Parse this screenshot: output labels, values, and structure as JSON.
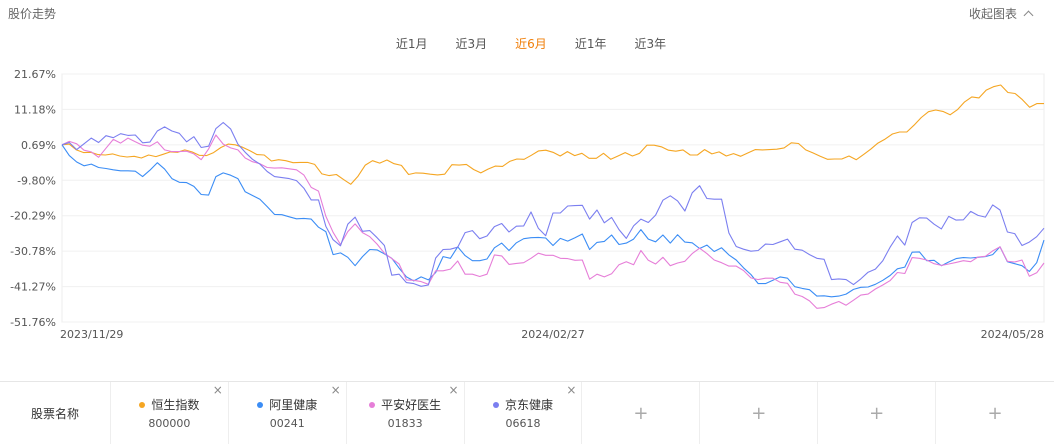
{
  "header": {
    "title": "股价走势",
    "collapse_label": "收起图表"
  },
  "tabs": [
    {
      "label": "近1月",
      "active": false
    },
    {
      "label": "近3月",
      "active": false
    },
    {
      "label": "近6月",
      "active": true
    },
    {
      "label": "近1年",
      "active": false
    },
    {
      "label": "近3年",
      "active": false
    }
  ],
  "footer": {
    "label": "股票名称",
    "stocks": [
      {
        "name": "恒生指数",
        "code": "800000",
        "color": "#f5a623",
        "close": "×"
      },
      {
        "name": "阿里健康",
        "code": "00241",
        "color": "#3b8df5",
        "close": "×"
      },
      {
        "name": "平安好医生",
        "code": "01833",
        "color": "#e67ed8",
        "close": "×"
      },
      {
        "name": "京东健康",
        "code": "06618",
        "color": "#7b7ff0",
        "close": "×"
      }
    ],
    "add_slots": [
      "+",
      "+",
      "+",
      "+"
    ]
  },
  "chart_data": {
    "type": "line",
    "x_start": "2023-11-29",
    "x_end": "2024-05-28",
    "x_ticks": [
      "2023/11/29",
      "2024/02/27",
      "2024/05/28"
    ],
    "y_ticks": [
      "21.67%",
      "11.18%",
      "0.69%",
      "-9.80%",
      "-20.29%",
      "-30.78%",
      "-41.27%",
      "-51.76%"
    ],
    "ylim": [
      -51.76,
      21.67
    ],
    "grid": true,
    "series": [
      {
        "name": "恒生指数",
        "color": "#f5a623",
        "values": [
          0.7,
          0.9,
          -0.8,
          -1.6,
          -1.5,
          -2.2,
          -2.3,
          -2.0,
          -2.6,
          -2.9,
          -2.7,
          -3.2,
          -2.3,
          -2.8,
          -2.1,
          -1.4,
          -1.5,
          -0.8,
          -1.4,
          -2.4,
          -2.5,
          -1.6,
          -0.1,
          0.9,
          0.7,
          0.0,
          -1.0,
          -2.2,
          -2.3,
          -4.1,
          -3.7,
          -4.0,
          -4.6,
          -4.5,
          -4.5,
          -5.1,
          -7.9,
          -8.4,
          -8.1,
          -9.6,
          -11.0,
          -8.6,
          -5.3,
          -4.0,
          -4.7,
          -3.8,
          -4.9,
          -5.4,
          -8.1,
          -7.6,
          -7.7,
          -8.0,
          -8.2,
          -8.0,
          -5.2,
          -5.3,
          -5.1,
          -6.6,
          -7.6,
          -6.5,
          -5.6,
          -5.7,
          -4.2,
          -3.5,
          -3.6,
          -2.4,
          -1.1,
          -0.9,
          -1.5,
          -2.6,
          -1.3,
          -2.5,
          -1.8,
          -3.3,
          -3.3,
          -1.8,
          -3.6,
          -2.6,
          -1.6,
          -2.6,
          -1.8,
          0.6,
          0.6,
          0.1,
          -0.9,
          -1.2,
          -0.8,
          -2.3,
          -2.3,
          -0.7,
          -2.0,
          -1.4,
          -2.6,
          -1.9,
          -2.7,
          -1.7,
          -0.7,
          -0.8,
          -0.7,
          -0.6,
          -0.2,
          1.3,
          1.1,
          -0.8,
          -1.7,
          -2.7,
          -3.6,
          -3.5,
          -3.5,
          -2.6,
          -3.7,
          -2.2,
          -0.6,
          1.2,
          2.4,
          3.9,
          4.5,
          4.5,
          6.5,
          8.8,
          10.5,
          11.0,
          10.6,
          9.6,
          11.1,
          13.4,
          14.9,
          14.6,
          16.9,
          17.9,
          18.4,
          16.2,
          15.9,
          14.1,
          11.8,
          12.9,
          12.9
        ]
      },
      {
        "name": "阿里健康",
        "color": "#3b8df5",
        "values": [
          0.7,
          -2.5,
          -4.4,
          -5.5,
          -5.0,
          -6.0,
          -6.3,
          -6.7,
          -7.0,
          -7.0,
          -7.1,
          -8.7,
          -6.8,
          -4.6,
          -6.5,
          -9.3,
          -10.4,
          -10.5,
          -11.6,
          -14.0,
          -14.2,
          -8.7,
          -7.6,
          -8.3,
          -9.3,
          -13.2,
          -14.3,
          -15.4,
          -17.6,
          -19.9,
          -20.0,
          -20.6,
          -21.2,
          -21.1,
          -21.3,
          -23.7,
          -25.0,
          -31.8,
          -31.3,
          -32.6,
          -35.1,
          -32.4,
          -30.3,
          -30.4,
          -31.6,
          -32.9,
          -35.8,
          -38.4,
          -39.6,
          -38.4,
          -39.3,
          -37.1,
          -32.4,
          -32.9,
          -29.5,
          -32.1,
          -33.6,
          -33.6,
          -33.1,
          -29.8,
          -28.4,
          -30.6,
          -28.3,
          -27.1,
          -26.8,
          -26.7,
          -26.9,
          -29.1,
          -27.0,
          -27.8,
          -26.8,
          -25.7,
          -30.3,
          -28.2,
          -27.9,
          -26.0,
          -28.8,
          -28.4,
          -27.2,
          -24.4,
          -27.2,
          -28.0,
          -26.0,
          -28.4,
          -25.9,
          -28.1,
          -28.3,
          -30.0,
          -29.0,
          -30.9,
          -29.8,
          -31.9,
          -33.4,
          -35.7,
          -37.7,
          -40.4,
          -40.4,
          -39.4,
          -38.4,
          -38.8,
          -41.3,
          -41.8,
          -42.2,
          -44.1,
          -44.0,
          -44.3,
          -44.1,
          -43.5,
          -42.1,
          -41.5,
          -41.4,
          -40.6,
          -39.4,
          -38.0,
          -36.0,
          -35.5,
          -31.1,
          -31.0,
          -33.6,
          -33.5,
          -35.1,
          -34.0,
          -33.0,
          -32.7,
          -32.8,
          -32.6,
          -32.4,
          -31.8,
          -29.5,
          -33.9,
          -34.5,
          -35.1,
          -36.8,
          -34.2,
          -27.5
        ]
      },
      {
        "name": "平安好医生",
        "color": "#e67ed8",
        "values": [
          0.7,
          1.7,
          1.0,
          -0.9,
          -1.4,
          -3.0,
          -0.3,
          2.3,
          1.2,
          2.7,
          1.6,
          0.6,
          0.3,
          1.6,
          -0.8,
          -1.3,
          -1.3,
          -1.2,
          -2.0,
          -3.7,
          -0.5,
          3.6,
          0.9,
          -0.2,
          -0.8,
          -3.2,
          -4.3,
          -4.9,
          -6.0,
          -6.2,
          -6.1,
          -6.4,
          -6.7,
          -8.2,
          -11.9,
          -13.0,
          -20.4,
          -25.2,
          -28.8,
          -25.0,
          -22.7,
          -25.3,
          -26.5,
          -28.7,
          -31.4,
          -33.0,
          -34.6,
          -39.3,
          -39.4,
          -39.8,
          -40.6,
          -36.6,
          -36.6,
          -36.1,
          -33.7,
          -37.6,
          -37.6,
          -38.3,
          -37.6,
          -31.9,
          -32.2,
          -34.7,
          -34.4,
          -34.2,
          -32.9,
          -31.4,
          -32.0,
          -32.0,
          -32.9,
          -33.0,
          -33.5,
          -33.4,
          -39.1,
          -37.6,
          -38.4,
          -37.5,
          -34.8,
          -33.9,
          -34.8,
          -30.6,
          -33.5,
          -34.6,
          -32.6,
          -35.1,
          -34.3,
          -33.8,
          -31.5,
          -29.9,
          -31.5,
          -33.4,
          -34.2,
          -35.2,
          -35.2,
          -36.5,
          -38.7,
          -39.2,
          -38.8,
          -38.8,
          -40.0,
          -40.3,
          -43.5,
          -44.2,
          -45.5,
          -47.7,
          -47.5,
          -46.5,
          -45.7,
          -46.8,
          -45.3,
          -43.8,
          -43.5,
          -42.0,
          -40.8,
          -39.5,
          -37.1,
          -37.4,
          -32.7,
          -32.9,
          -33.4,
          -34.5,
          -35.0,
          -34.6,
          -34.1,
          -33.6,
          -33.9,
          -32.5,
          -32.3,
          -30.7,
          -29.5,
          -33.8,
          -34.0,
          -33.4,
          -38.2,
          -37.2,
          -34.3
        ]
      },
      {
        "name": "京东健康",
        "color": "#7b7ff0",
        "values": [
          0.7,
          1.4,
          -0.7,
          1.0,
          2.7,
          1.4,
          3.4,
          2.8,
          4.0,
          3.5,
          3.6,
          1.3,
          1.5,
          4.8,
          6.0,
          4.8,
          4.1,
          1.6,
          3.1,
          -0.1,
          0.3,
          5.5,
          7.3,
          5.4,
          0.9,
          -1.5,
          -3.6,
          -5.0,
          -7.2,
          -8.7,
          -9.0,
          -9.3,
          -9.9,
          -12.1,
          -15.6,
          -15.6,
          -23.4,
          -27.4,
          -29.2,
          -22.8,
          -20.7,
          -24.9,
          -24.7,
          -26.8,
          -29.1,
          -37.9,
          -37.6,
          -40.1,
          -40.4,
          -41.2,
          -40.8,
          -32.8,
          -30.3,
          -30.2,
          -29.6,
          -25.3,
          -24.7,
          -27.1,
          -26.3,
          -23.5,
          -22.6,
          -25.1,
          -23.4,
          -23.3,
          -19.2,
          -24.0,
          -26.2,
          -19.5,
          -19.5,
          -17.4,
          -17.3,
          -17.2,
          -21.3,
          -18.6,
          -22.4,
          -20.8,
          -24.4,
          -27.0,
          -23.3,
          -21.3,
          -22.3,
          -20.1,
          -15.7,
          -14.4,
          -15.9,
          -18.9,
          -13.5,
          -11.4,
          -15.2,
          -15.4,
          -15.4,
          -25.4,
          -29.4,
          -30.2,
          -30.8,
          -30.6,
          -28.7,
          -28.8,
          -28.0,
          -27.2,
          -30.2,
          -30.5,
          -31.8,
          -32.9,
          -33.2,
          -39.2,
          -39.0,
          -39.2,
          -40.7,
          -39.0,
          -37.0,
          -36.1,
          -33.6,
          -29.6,
          -26.3,
          -29.0,
          -22.3,
          -20.9,
          -21.0,
          -22.8,
          -24.2,
          -20.5,
          -21.6,
          -21.5,
          -19.0,
          -20.2,
          -20.7,
          -17.1,
          -18.6,
          -25.1,
          -25.6,
          -29.1,
          -28.1,
          -26.5,
          -24.0
        ]
      }
    ]
  }
}
